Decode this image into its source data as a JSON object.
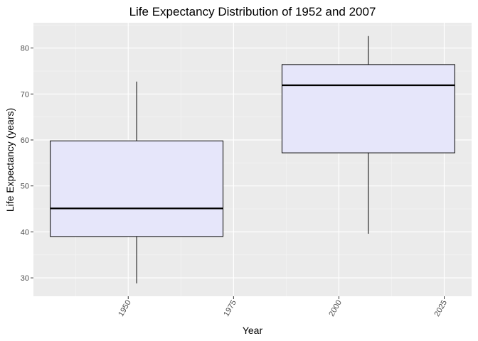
{
  "chart_data": {
    "type": "boxplot",
    "title": "Life Expectancy Distribution of 1952 and 2007",
    "xlabel": "Year",
    "ylabel": "Life Expectancy (years)",
    "xlim": [
      1927.5,
      2031.5
    ],
    "ylim": [
      26,
      85.5
    ],
    "x_ticks": [
      1950,
      1975,
      2000,
      2025
    ],
    "x_tick_labels": [
      "1950",
      "1975",
      "2000",
      "2025"
    ],
    "y_ticks": [
      30,
      40,
      50,
      60,
      70,
      80
    ],
    "y_tick_labels": [
      "30",
      "40",
      "50",
      "60",
      "70",
      "80"
    ],
    "grid": true,
    "legend": "none",
    "box_fill": "#e6e6fa",
    "panel_background": "#ebebeb",
    "boxes": [
      {
        "x": 1952,
        "xmin": 1931.5,
        "xmax": 1972.5,
        "whisker_low": 28.8,
        "q1": 39.0,
        "median": 45.1,
        "q3": 59.8,
        "whisker_high": 72.7
      },
      {
        "x": 2007,
        "xmin": 1986.5,
        "xmax": 2027.5,
        "whisker_low": 39.6,
        "q1": 57.2,
        "median": 71.9,
        "q3": 76.4,
        "whisker_high": 82.6
      }
    ]
  }
}
